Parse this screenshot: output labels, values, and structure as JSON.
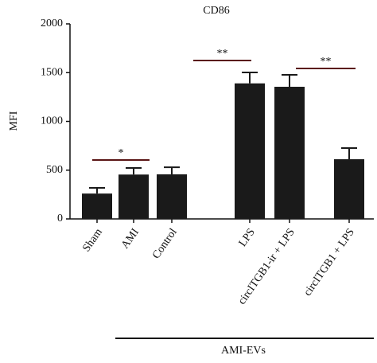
{
  "chart_data": {
    "type": "bar",
    "title": "CD86",
    "y_label": "MFI",
    "categories": [
      "Sham",
      "AMI",
      "Control",
      "LPS",
      "circITGB1-ir + LPS",
      "circITGB1 + LPS"
    ],
    "values": [
      260,
      455,
      457,
      1390,
      1355,
      612
    ],
    "errors": [
      58,
      67,
      73,
      112,
      123,
      115
    ],
    "color": "#1a1a1a",
    "ylim": [
      0,
      2000
    ],
    "yticks": [
      0,
      500,
      1000,
      1500,
      2000
    ],
    "annotations": [
      "*",
      "**",
      "**"
    ],
    "group_label": "AMI-EVs"
  }
}
